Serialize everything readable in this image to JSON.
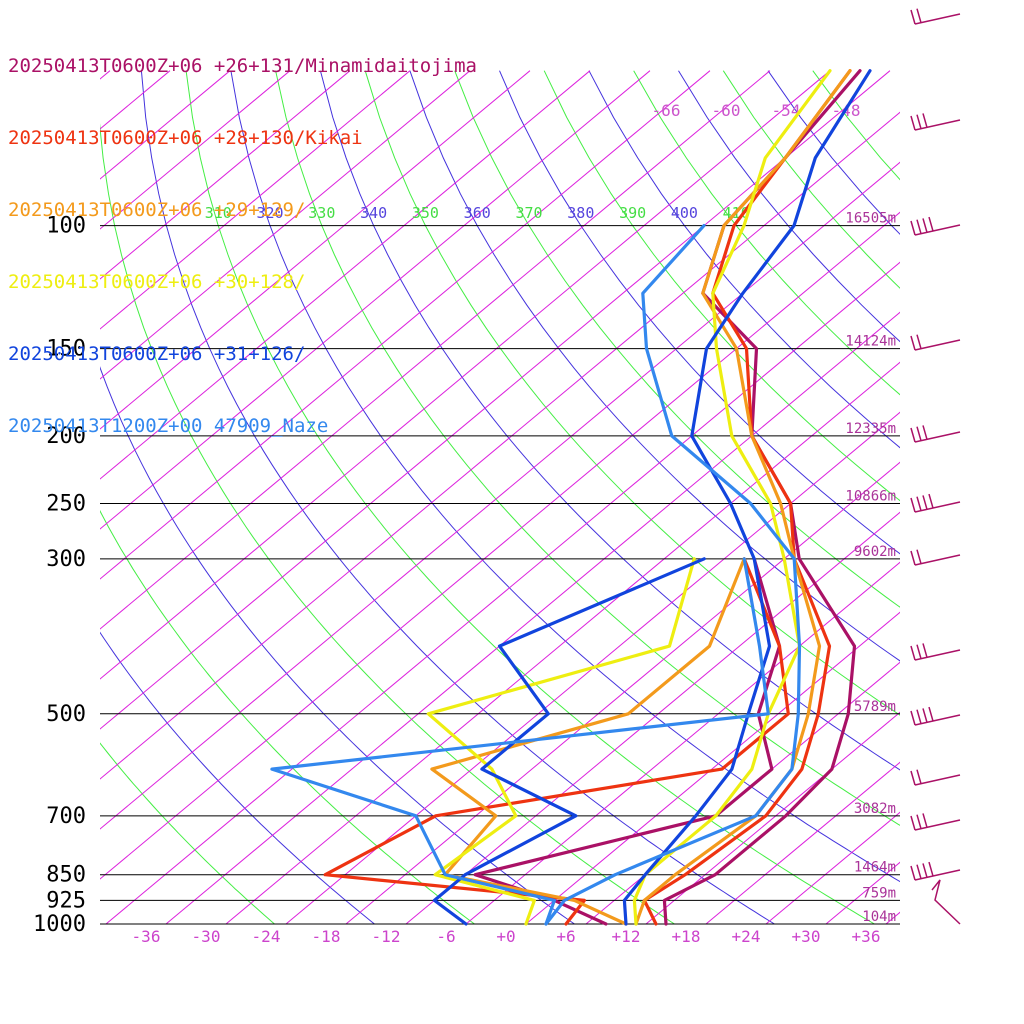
{
  "legend": [
    {
      "label": "20250413T0600Z+06 +26+131/Minamidaitojima",
      "color": "#aa1166"
    },
    {
      "label": "20250413T0600Z+06 +28+130/Kikai",
      "color": "#ee3311"
    },
    {
      "label": "20250413T0600Z+06 +29+129/",
      "color": "#f39a1c"
    },
    {
      "label": "20250413T0600Z+06 +30+128/",
      "color": "#eeee11"
    },
    {
      "label": "20250413T0600Z+06 +31+126/",
      "color": "#1144dd"
    },
    {
      "label": "20250413T1200Z+00 47909_Naze",
      "color": "#3388ee"
    }
  ],
  "chart_data": {
    "type": "line",
    "subtype": "skew-T log-P sounding",
    "xlabel": "",
    "ylabel": "",
    "x_ticks": [
      "-36",
      "-30",
      "-24",
      "-18",
      "-12",
      "-6",
      "+0",
      "+6",
      "+12",
      "+18",
      "+24",
      "+30",
      "+36"
    ],
    "pressure_ticks": [
      "100",
      "150",
      "200",
      "250",
      "300",
      "500",
      "700",
      "850",
      "925",
      "1000"
    ],
    "height_labels": [
      "16505m",
      "14124m",
      "12335m",
      "10866m",
      "9602m",
      "5789m",
      "3082m",
      "1464m",
      "759m",
      "104m"
    ],
    "mixing_ratio_labels": [
      "-66",
      "-60",
      "-54",
      "-48"
    ],
    "theta_labels": [
      "310",
      "320",
      "330",
      "340",
      "350",
      "360",
      "370",
      "380",
      "390",
      "400",
      "410"
    ],
    "colors": {
      "isotherm": "#dd22dd",
      "theta_green": "#44ee44",
      "theta_blue": "#4433dd",
      "pressure_line": "#000000",
      "x_tick": "#cc44cc",
      "height_label": "#aa3399",
      "theta_label_green": "#44dd44",
      "theta_label_blue": "#5544dd",
      "mixing_label": "#cc55cc"
    },
    "series": [
      {
        "name": "20250413T0600Z+06 +26+131/Minamidaitojima",
        "color": "#aa1166",
        "temp": [
          [
            1000,
            16
          ],
          [
            925,
            13
          ],
          [
            850,
            15
          ],
          [
            700,
            15
          ],
          [
            600,
            14
          ],
          [
            500,
            9
          ],
          [
            400,
            1.5
          ],
          [
            300,
            -14.5
          ],
          [
            250,
            -22
          ],
          [
            200,
            -34
          ],
          [
            150,
            -44
          ],
          [
            125,
            -56
          ],
          [
            100,
            -62
          ],
          [
            80,
            -64
          ],
          [
            60,
            -67
          ]
        ],
        "dew": [
          [
            1000,
            10
          ],
          [
            925,
            2
          ],
          [
            850,
            -9
          ],
          [
            700,
            8
          ],
          [
            600,
            8
          ],
          [
            500,
            0
          ],
          [
            400,
            -6
          ],
          [
            300,
            -19
          ]
        ]
      },
      {
        "name": "20250413T0600Z+06 +28+130/Kikai",
        "color": "#ee3311",
        "temp": [
          [
            1000,
            15
          ],
          [
            925,
            11
          ],
          [
            850,
            12
          ],
          [
            700,
            13
          ],
          [
            600,
            11
          ],
          [
            500,
            6
          ],
          [
            400,
            -1
          ],
          [
            300,
            -15
          ],
          [
            250,
            -22
          ],
          [
            200,
            -34
          ],
          [
            150,
            -45
          ],
          [
            125,
            -55
          ],
          [
            100,
            -61
          ],
          [
            80,
            -64
          ],
          [
            60,
            -68
          ]
        ],
        "dew": [
          [
            1000,
            6
          ],
          [
            925,
            5
          ],
          [
            850,
            -24
          ],
          [
            700,
            -20
          ],
          [
            600,
            3
          ],
          [
            500,
            3
          ],
          [
            400,
            -6
          ],
          [
            300,
            -20
          ]
        ]
      },
      {
        "name": "20250413T0600Z+06 +29+129/",
        "color": "#f39a1c",
        "temp": [
          [
            1000,
            13
          ],
          [
            925,
            11
          ],
          [
            850,
            11
          ],
          [
            700,
            12
          ],
          [
            600,
            10
          ],
          [
            500,
            5
          ],
          [
            400,
            -2
          ],
          [
            300,
            -15
          ],
          [
            250,
            -23
          ],
          [
            200,
            -34
          ],
          [
            150,
            -46
          ],
          [
            125,
            -56
          ],
          [
            100,
            -62
          ],
          [
            80,
            -64
          ],
          [
            60,
            -68
          ]
        ],
        "dew": [
          [
            1000,
            12
          ],
          [
            925,
            4
          ],
          [
            850,
            -12
          ],
          [
            700,
            -14
          ],
          [
            600,
            -26
          ],
          [
            500,
            -13
          ],
          [
            400,
            -13
          ],
          [
            300,
            -20
          ]
        ]
      },
      {
        "name": "20250413T0600Z+06 +30+128/",
        "color": "#eeee11",
        "temp": [
          [
            1000,
            13
          ],
          [
            925,
            10
          ],
          [
            850,
            8
          ],
          [
            700,
            8
          ],
          [
            600,
            6
          ],
          [
            500,
            1
          ],
          [
            400,
            -4
          ],
          [
            300,
            -16
          ],
          [
            250,
            -24
          ],
          [
            200,
            -36
          ],
          [
            150,
            -48
          ],
          [
            125,
            -55
          ],
          [
            100,
            -60
          ],
          [
            80,
            -66
          ],
          [
            60,
            -70
          ]
        ],
        "dew": [
          [
            1000,
            2
          ],
          [
            925,
            0
          ],
          [
            850,
            -13
          ],
          [
            700,
            -12
          ],
          [
            600,
            -20
          ],
          [
            500,
            -33
          ],
          [
            400,
            -17
          ],
          [
            300,
            -25
          ]
        ]
      },
      {
        "name": "20250413T0600Z+06 +31+126/",
        "color": "#1144dd",
        "temp": [
          [
            1000,
            12
          ],
          [
            925,
            9
          ],
          [
            850,
            8
          ],
          [
            700,
            6
          ],
          [
            600,
            4
          ],
          [
            500,
            -1
          ],
          [
            400,
            -7
          ],
          [
            300,
            -19
          ],
          [
            250,
            -28
          ],
          [
            200,
            -40
          ],
          [
            150,
            -49
          ],
          [
            125,
            -52
          ],
          [
            100,
            -55
          ],
          [
            80,
            -61
          ],
          [
            60,
            -66
          ]
        ],
        "dew": [
          [
            1000,
            -4
          ],
          [
            925,
            -10
          ],
          [
            850,
            -10
          ],
          [
            700,
            -6
          ],
          [
            600,
            -21
          ],
          [
            500,
            -21
          ],
          [
            400,
            -34
          ],
          [
            300,
            -24
          ]
        ]
      },
      {
        "name": "20250413T1200Z+00 47909_Naze",
        "color": "#3388ee",
        "temp": [
          [
            1000,
            4
          ],
          [
            925,
            3
          ],
          [
            850,
            5
          ],
          [
            700,
            12
          ],
          [
            600,
            10
          ],
          [
            500,
            4
          ],
          [
            400,
            -4
          ],
          [
            300,
            -15
          ],
          [
            250,
            -26
          ],
          [
            200,
            -42
          ],
          [
            150,
            -55
          ],
          [
            125,
            -62
          ],
          [
            100,
            -64
          ]
        ],
        "dew": [
          [
            1000,
            4
          ],
          [
            925,
            2
          ],
          [
            850,
            -12
          ],
          [
            700,
            -22
          ],
          [
            600,
            -42
          ],
          [
            500,
            1
          ],
          [
            400,
            -8
          ],
          [
            300,
            -20
          ]
        ]
      }
    ]
  }
}
